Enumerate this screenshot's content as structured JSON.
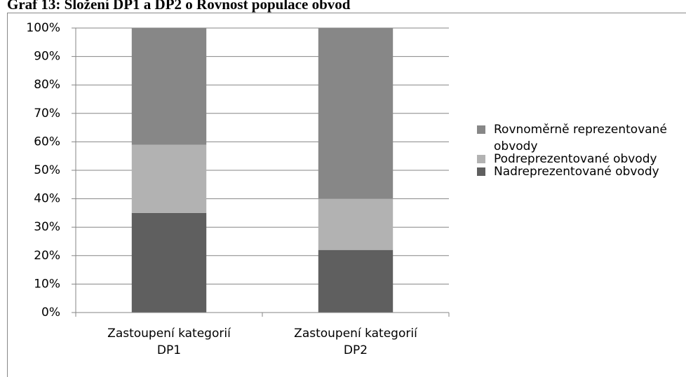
{
  "chart_data": {
    "type": "stacked_bar",
    "title": "Graf 13: Složení DP1 a DP2 o Rovnost populace obvod",
    "categories": [
      "Zastoupení kategorií DP1",
      "Zastoupení kategorií DP2"
    ],
    "series": [
      {
        "name": "Nadreprezentované obvody",
        "color": "#5f5f5f",
        "values": [
          35,
          22
        ]
      },
      {
        "name": "Podreprezentované obvody",
        "color": "#b2b2b2",
        "values": [
          24,
          18
        ]
      },
      {
        "name": "Rovnoměrně reprezentované obvody",
        "color": "#878787",
        "values": [
          41,
          60
        ]
      }
    ],
    "ylim": [
      0,
      100
    ],
    "yticks": [
      {
        "value": 0,
        "label": "0%"
      },
      {
        "value": 10,
        "label": "10%"
      },
      {
        "value": 20,
        "label": "20%"
      },
      {
        "value": 30,
        "label": "30%"
      },
      {
        "value": 40,
        "label": "40%"
      },
      {
        "value": 50,
        "label": "50%"
      },
      {
        "value": 60,
        "label": "60%"
      },
      {
        "value": 70,
        "label": "70%"
      },
      {
        "value": 80,
        "label": "80%"
      },
      {
        "value": 90,
        "label": "90%"
      },
      {
        "value": 100,
        "label": "100%"
      }
    ],
    "grid": true,
    "legend": "right"
  }
}
